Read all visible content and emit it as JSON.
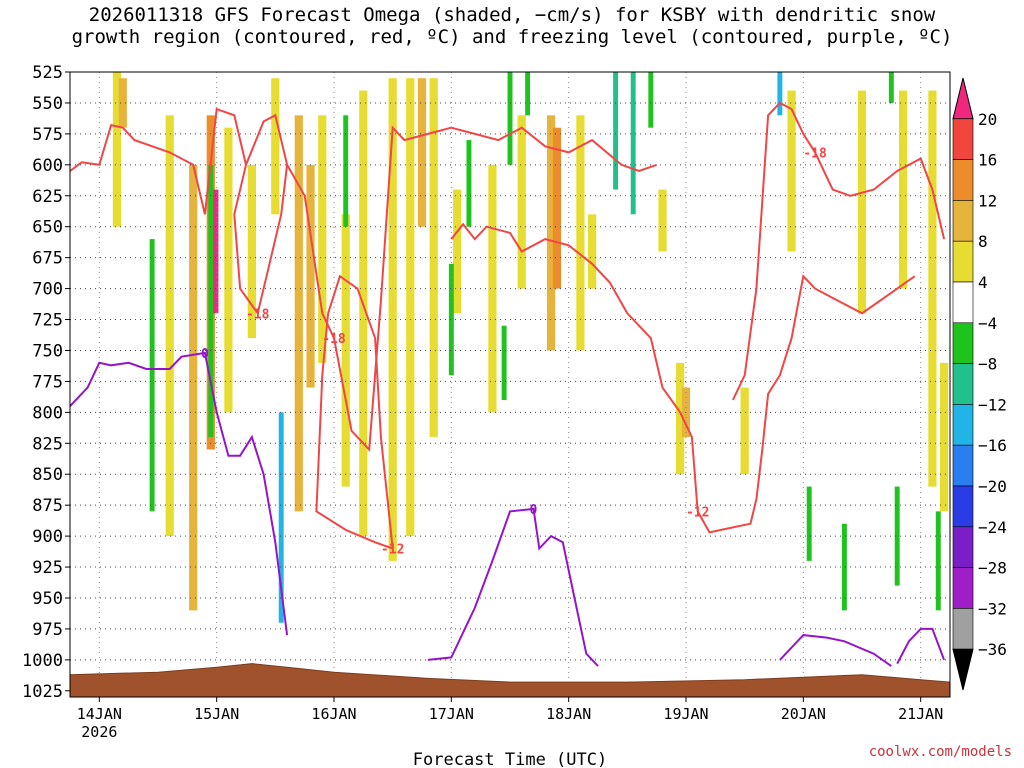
{
  "title": {
    "line1": "2026011318 GFS Forecast Omega (shaded, −cm/s) for KSBY with dendritic snow",
    "line2": "growth region (contoured, red, ºC) and freezing level (contoured, purple, ºC)"
  },
  "credit": "coolwx.com/models",
  "chart_data": {
    "type": "heatmap",
    "xlabel": "Forecast Time (UTC)",
    "x_ticks": [
      {
        "label": "14JAN",
        "sub": "2026",
        "day": 14
      },
      {
        "label": "15JAN",
        "sub": "",
        "day": 15
      },
      {
        "label": "16JAN",
        "sub": "",
        "day": 16
      },
      {
        "label": "17JAN",
        "sub": "",
        "day": 17
      },
      {
        "label": "18JAN",
        "sub": "",
        "day": 18
      },
      {
        "label": "19JAN",
        "sub": "",
        "day": 19
      },
      {
        "label": "20JAN",
        "sub": "",
        "day": 20
      },
      {
        "label": "21JAN",
        "sub": "",
        "day": 21
      }
    ],
    "x_range": [
      13.75,
      21.25
    ],
    "y_levels": [
      525,
      550,
      575,
      600,
      625,
      650,
      675,
      700,
      725,
      750,
      775,
      800,
      825,
      850,
      875,
      900,
      925,
      950,
      975,
      1000,
      1025
    ],
    "y_range": [
      525,
      1030
    ],
    "grid": true,
    "colorbar": {
      "labels": [
        "20",
        "16",
        "12",
        "8",
        "4",
        "−4",
        "−8",
        "−12",
        "−16",
        "−20",
        "−24",
        "−28",
        "−32",
        "−36"
      ],
      "colors": [
        "#f0287d",
        "#f0463c",
        "#ec8c2a",
        "#e6b43c",
        "#e6dc32",
        "#ffffff",
        "#1ec31e",
        "#21c08c",
        "#21b4e6",
        "#2a7ef0",
        "#2a3ce6",
        "#7a1ec8",
        "#a01ec8",
        "#a0a0a0",
        "#000000"
      ]
    },
    "omega_positive": [
      {
        "t": 14.15,
        "p0": 525,
        "p1": 650,
        "v": 6
      },
      {
        "t": 14.2,
        "p0": 530,
        "p1": 570,
        "v": 10
      },
      {
        "t": 14.6,
        "p0": 560,
        "p1": 900,
        "v": 6
      },
      {
        "t": 14.8,
        "p0": 600,
        "p1": 960,
        "v": 8
      },
      {
        "t": 14.95,
        "p0": 560,
        "p1": 830,
        "v": 14
      },
      {
        "t": 14.98,
        "p0": 620,
        "p1": 720,
        "v": 20
      },
      {
        "t": 15.1,
        "p0": 570,
        "p1": 800,
        "v": 6
      },
      {
        "t": 15.3,
        "p0": 600,
        "p1": 740,
        "v": 6
      },
      {
        "t": 15.5,
        "p0": 530,
        "p1": 640,
        "v": 6
      },
      {
        "t": 15.7,
        "p0": 560,
        "p1": 880,
        "v": 8
      },
      {
        "t": 15.8,
        "p0": 600,
        "p1": 780,
        "v": 10
      },
      {
        "t": 15.9,
        "p0": 560,
        "p1": 760,
        "v": 6
      },
      {
        "t": 16.1,
        "p0": 640,
        "p1": 860,
        "v": 6
      },
      {
        "t": 16.25,
        "p0": 540,
        "p1": 900,
        "v": 6
      },
      {
        "t": 16.5,
        "p0": 530,
        "p1": 920,
        "v": 6
      },
      {
        "t": 16.65,
        "p0": 530,
        "p1": 900,
        "v": 6
      },
      {
        "t": 16.75,
        "p0": 530,
        "p1": 650,
        "v": 10
      },
      {
        "t": 16.85,
        "p0": 530,
        "p1": 820,
        "v": 6
      },
      {
        "t": 17.05,
        "p0": 620,
        "p1": 720,
        "v": 6
      },
      {
        "t": 17.35,
        "p0": 600,
        "p1": 800,
        "v": 6
      },
      {
        "t": 17.6,
        "p0": 560,
        "p1": 700,
        "v": 6
      },
      {
        "t": 17.85,
        "p0": 560,
        "p1": 750,
        "v": 8
      },
      {
        "t": 17.9,
        "p0": 570,
        "p1": 700,
        "v": 12
      },
      {
        "t": 18.1,
        "p0": 560,
        "p1": 750,
        "v": 6
      },
      {
        "t": 18.2,
        "p0": 640,
        "p1": 700,
        "v": 6
      },
      {
        "t": 18.8,
        "p0": 620,
        "p1": 670,
        "v": 6
      },
      {
        "t": 18.95,
        "p0": 760,
        "p1": 850,
        "v": 6
      },
      {
        "t": 19.0,
        "p0": 780,
        "p1": 820,
        "v": 10
      },
      {
        "t": 19.5,
        "p0": 780,
        "p1": 850,
        "v": 6
      },
      {
        "t": 19.9,
        "p0": 540,
        "p1": 670,
        "v": 6
      },
      {
        "t": 20.5,
        "p0": 540,
        "p1": 720,
        "v": 6
      },
      {
        "t": 20.85,
        "p0": 540,
        "p1": 700,
        "v": 6
      },
      {
        "t": 21.1,
        "p0": 540,
        "p1": 860,
        "v": 6
      },
      {
        "t": 21.2,
        "p0": 760,
        "p1": 880,
        "v": 6
      }
    ],
    "omega_negative": [
      {
        "t": 14.45,
        "p0": 660,
        "p1": 880,
        "v": -6
      },
      {
        "t": 14.95,
        "p0": 600,
        "p1": 820,
        "v": -6
      },
      {
        "t": 15.55,
        "p0": 800,
        "p1": 970,
        "v": -12
      },
      {
        "t": 16.1,
        "p0": 560,
        "p1": 650,
        "v": -6
      },
      {
        "t": 17.0,
        "p0": 680,
        "p1": 770,
        "v": -6
      },
      {
        "t": 17.15,
        "p0": 580,
        "p1": 650,
        "v": -6
      },
      {
        "t": 17.45,
        "p0": 730,
        "p1": 790,
        "v": -6
      },
      {
        "t": 17.5,
        "p0": 525,
        "p1": 600,
        "v": -6
      },
      {
        "t": 17.65,
        "p0": 525,
        "p1": 560,
        "v": -6
      },
      {
        "t": 18.4,
        "p0": 525,
        "p1": 620,
        "v": -8
      },
      {
        "t": 18.55,
        "p0": 525,
        "p1": 640,
        "v": -10
      },
      {
        "t": 18.7,
        "p0": 525,
        "p1": 570,
        "v": -6
      },
      {
        "t": 19.8,
        "p0": 525,
        "p1": 560,
        "v": -12
      },
      {
        "t": 20.05,
        "p0": 860,
        "p1": 920,
        "v": -6
      },
      {
        "t": 20.35,
        "p0": 890,
        "p1": 960,
        "v": -6
      },
      {
        "t": 20.75,
        "p0": 525,
        "p1": 550,
        "v": -6
      },
      {
        "t": 20.8,
        "p0": 860,
        "p1": 940,
        "v": -6
      },
      {
        "t": 21.15,
        "p0": 880,
        "p1": 960,
        "v": -6
      }
    ],
    "contours_dgz": [
      {
        "label": "-18",
        "points": [
          [
            13.75,
            605
          ],
          [
            13.85,
            598
          ],
          [
            14.0,
            600
          ],
          [
            14.1,
            568
          ],
          [
            14.2,
            570
          ],
          [
            14.3,
            580
          ],
          [
            14.6,
            590
          ],
          [
            14.8,
            600
          ],
          [
            14.9,
            640
          ],
          [
            15.0,
            555
          ],
          [
            15.15,
            560
          ],
          [
            15.25,
            600
          ],
          [
            15.4,
            565
          ],
          [
            15.5,
            560
          ],
          [
            15.6,
            600
          ],
          [
            15.75,
            625
          ],
          [
            15.9,
            720
          ],
          [
            16.0,
            740
          ],
          [
            16.15,
            815
          ],
          [
            16.3,
            830
          ],
          [
            16.4,
            710
          ],
          [
            16.5,
            570
          ],
          [
            16.6,
            580
          ],
          [
            16.8,
            575
          ],
          [
            17.0,
            570
          ],
          [
            17.2,
            575
          ],
          [
            17.4,
            580
          ],
          [
            17.6,
            570
          ],
          [
            17.8,
            585
          ],
          [
            18.0,
            590
          ],
          [
            18.2,
            580
          ],
          [
            18.45,
            600
          ],
          [
            18.6,
            605
          ],
          [
            18.75,
            600
          ]
        ]
      },
      {
        "label": "-18",
        "points": [
          [
            15.25,
            600
          ],
          [
            15.15,
            640
          ],
          [
            15.2,
            700
          ],
          [
            15.35,
            720
          ],
          [
            15.45,
            680
          ],
          [
            15.55,
            640
          ],
          [
            15.6,
            600
          ]
        ]
      },
      {
        "label": "-18",
        "points": [
          [
            19.4,
            790
          ],
          [
            19.5,
            770
          ],
          [
            19.6,
            700
          ],
          [
            19.7,
            560
          ],
          [
            19.8,
            550
          ],
          [
            19.9,
            555
          ],
          [
            20.0,
            575
          ],
          [
            20.1,
            590
          ],
          [
            20.25,
            620
          ],
          [
            20.4,
            625
          ],
          [
            20.6,
            620
          ],
          [
            20.8,
            605
          ],
          [
            21.0,
            595
          ],
          [
            21.1,
            620
          ],
          [
            21.2,
            660
          ]
        ]
      },
      {
        "label": "-12",
        "points": [
          [
            17.0,
            660
          ],
          [
            17.1,
            648
          ],
          [
            17.2,
            660
          ],
          [
            17.3,
            650
          ],
          [
            17.5,
            655
          ],
          [
            17.6,
            670
          ],
          [
            17.8,
            660
          ],
          [
            18.0,
            665
          ],
          [
            18.2,
            680
          ],
          [
            18.35,
            695
          ],
          [
            18.5,
            720
          ],
          [
            18.7,
            740
          ],
          [
            18.8,
            780
          ],
          [
            18.95,
            800
          ],
          [
            19.05,
            820
          ],
          [
            19.1,
            880
          ],
          [
            19.2,
            897
          ],
          [
            19.4,
            893
          ],
          [
            19.55,
            890
          ],
          [
            19.6,
            870
          ],
          [
            19.65,
            830
          ],
          [
            19.7,
            785
          ],
          [
            19.8,
            770
          ],
          [
            19.9,
            740
          ],
          [
            20.0,
            690
          ],
          [
            20.1,
            700
          ],
          [
            20.3,
            710
          ],
          [
            20.5,
            720
          ],
          [
            20.65,
            710
          ],
          [
            20.8,
            700
          ],
          [
            20.95,
            690
          ]
        ]
      },
      {
        "label": "-12",
        "points": [
          [
            15.95,
            720
          ],
          [
            15.9,
            770
          ],
          [
            15.85,
            880
          ],
          [
            16.1,
            895
          ],
          [
            16.35,
            905
          ],
          [
            16.5,
            910
          ],
          [
            16.4,
            820
          ],
          [
            16.35,
            740
          ],
          [
            16.2,
            700
          ],
          [
            16.05,
            690
          ],
          [
            15.95,
            720
          ]
        ]
      }
    ],
    "contours_freezing": [
      {
        "label": "0",
        "points": [
          [
            13.75,
            795
          ],
          [
            13.9,
            780
          ],
          [
            14.0,
            760
          ],
          [
            14.1,
            762
          ],
          [
            14.25,
            760
          ],
          [
            14.4,
            765
          ],
          [
            14.6,
            765
          ],
          [
            14.7,
            755
          ],
          [
            14.9,
            752
          ],
          [
            15.0,
            800
          ],
          [
            15.1,
            835
          ],
          [
            15.2,
            835
          ],
          [
            15.3,
            820
          ],
          [
            15.4,
            850
          ],
          [
            15.5,
            905
          ],
          [
            15.6,
            980
          ]
        ]
      },
      {
        "label": "0",
        "points": [
          [
            16.8,
            1000
          ],
          [
            17.0,
            998
          ],
          [
            17.1,
            978
          ],
          [
            17.2,
            958
          ],
          [
            17.35,
            920
          ],
          [
            17.5,
            880
          ],
          [
            17.7,
            878
          ],
          [
            17.75,
            910
          ],
          [
            17.85,
            900
          ],
          [
            17.95,
            905
          ],
          [
            18.05,
            950
          ],
          [
            18.15,
            995
          ],
          [
            18.25,
            1005
          ]
        ]
      },
      {
        "label": "",
        "points": [
          [
            19.8,
            1000
          ],
          [
            20.0,
            980
          ],
          [
            20.2,
            982
          ],
          [
            20.35,
            985
          ],
          [
            20.6,
            995
          ],
          [
            20.75,
            1005
          ]
        ]
      },
      {
        "label": "",
        "points": [
          [
            20.8,
            1003
          ],
          [
            20.9,
            985
          ],
          [
            21.0,
            975
          ],
          [
            21.1,
            975
          ],
          [
            21.2,
            1000
          ]
        ]
      }
    ]
  }
}
